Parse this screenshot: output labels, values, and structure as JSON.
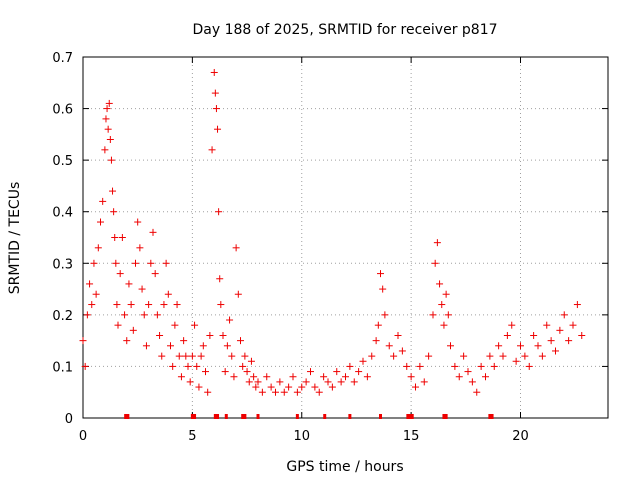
{
  "chart_data": {
    "type": "scatter",
    "title": "Day 188 of 2025, SRMTID for receiver p817",
    "xlabel": "GPS time / hours",
    "ylabel": "SRMTID / TECUs",
    "xlim": [
      0,
      24
    ],
    "ylim": [
      0,
      0.7
    ],
    "xticks": [
      0,
      5,
      10,
      15,
      20
    ],
    "yticks": [
      0,
      0.1,
      0.2,
      0.3,
      0.4,
      0.5,
      0.6,
      0.7
    ],
    "xtick_labels": [
      "0",
      "5",
      "10",
      "15",
      "20"
    ],
    "ytick_labels": [
      "0",
      "0.1",
      "0.2",
      "0.3",
      "0.4",
      "0.5",
      "0.6",
      "0.7"
    ],
    "grid": true,
    "marker": "plus",
    "color": "#ee0000",
    "series": [
      {
        "name": "SRMTID",
        "x": [
          0.0,
          0.1,
          0.2,
          0.3,
          0.4,
          0.5,
          0.6,
          0.7,
          0.8,
          0.9,
          1.0,
          1.05,
          1.1,
          1.15,
          1.2,
          1.25,
          1.3,
          1.35,
          1.4,
          1.45,
          1.5,
          1.55,
          1.6,
          1.7,
          1.8,
          1.9,
          2.0,
          2.1,
          2.2,
          2.3,
          2.4,
          2.5,
          2.6,
          2.7,
          2.8,
          2.9,
          3.0,
          3.1,
          3.2,
          3.3,
          3.4,
          3.5,
          3.6,
          3.7,
          3.8,
          3.9,
          4.0,
          4.1,
          4.2,
          4.3,
          4.4,
          4.5,
          4.6,
          4.7,
          4.8,
          4.9,
          5.0,
          5.1,
          5.2,
          5.3,
          5.4,
          5.5,
          5.6,
          5.7,
          5.8,
          5.9,
          6.0,
          6.05,
          6.1,
          6.15,
          6.2,
          6.25,
          6.3,
          6.4,
          6.5,
          6.6,
          6.7,
          6.8,
          6.9,
          7.0,
          7.1,
          7.2,
          7.3,
          7.4,
          7.5,
          7.6,
          7.7,
          7.8,
          7.9,
          8.0,
          8.2,
          8.4,
          8.6,
          8.8,
          9.0,
          9.2,
          9.4,
          9.6,
          9.8,
          10.0,
          10.2,
          10.4,
          10.6,
          10.8,
          11.0,
          11.2,
          11.4,
          11.6,
          11.8,
          12.0,
          12.2,
          12.4,
          12.6,
          12.8,
          13.0,
          13.2,
          13.4,
          13.5,
          13.6,
          13.7,
          13.8,
          14.0,
          14.2,
          14.4,
          14.6,
          14.8,
          15.0,
          15.2,
          15.4,
          15.6,
          15.8,
          16.0,
          16.1,
          16.2,
          16.3,
          16.4,
          16.5,
          16.6,
          16.7,
          16.8,
          17.0,
          17.2,
          17.4,
          17.6,
          17.8,
          18.0,
          18.2,
          18.4,
          18.6,
          18.8,
          19.0,
          19.2,
          19.4,
          19.6,
          19.8,
          20.0,
          20.2,
          20.4,
          20.6,
          20.8,
          21.0,
          21.2,
          21.4,
          21.6,
          21.8,
          22.0,
          22.2,
          22.4,
          22.6,
          22.8
        ],
        "y": [
          0.15,
          0.1,
          0.2,
          0.26,
          0.22,
          0.3,
          0.24,
          0.33,
          0.38,
          0.42,
          0.52,
          0.58,
          0.6,
          0.56,
          0.61,
          0.54,
          0.5,
          0.44,
          0.4,
          0.35,
          0.3,
          0.22,
          0.18,
          0.28,
          0.35,
          0.2,
          0.15,
          0.26,
          0.22,
          0.17,
          0.3,
          0.38,
          0.33,
          0.25,
          0.2,
          0.14,
          0.22,
          0.3,
          0.36,
          0.28,
          0.2,
          0.16,
          0.12,
          0.22,
          0.3,
          0.24,
          0.14,
          0.1,
          0.18,
          0.22,
          0.12,
          0.08,
          0.15,
          0.12,
          0.1,
          0.07,
          0.12,
          0.18,
          0.1,
          0.06,
          0.12,
          0.14,
          0.09,
          0.05,
          0.16,
          0.52,
          0.67,
          0.63,
          0.6,
          0.56,
          0.4,
          0.27,
          0.22,
          0.16,
          0.09,
          0.14,
          0.19,
          0.12,
          0.08,
          0.33,
          0.24,
          0.15,
          0.1,
          0.12,
          0.09,
          0.07,
          0.11,
          0.08,
          0.06,
          0.07,
          0.05,
          0.08,
          0.06,
          0.05,
          0.07,
          0.05,
          0.06,
          0.08,
          0.05,
          0.06,
          0.07,
          0.09,
          0.06,
          0.05,
          0.08,
          0.07,
          0.06,
          0.09,
          0.07,
          0.08,
          0.1,
          0.07,
          0.09,
          0.11,
          0.08,
          0.12,
          0.15,
          0.18,
          0.28,
          0.25,
          0.2,
          0.14,
          0.12,
          0.16,
          0.13,
          0.1,
          0.08,
          0.06,
          0.1,
          0.07,
          0.12,
          0.2,
          0.3,
          0.34,
          0.26,
          0.22,
          0.18,
          0.24,
          0.2,
          0.14,
          0.1,
          0.08,
          0.12,
          0.09,
          0.07,
          0.05,
          0.1,
          0.08,
          0.12,
          0.1,
          0.14,
          0.12,
          0.16,
          0.18,
          0.11,
          0.14,
          0.12,
          0.1,
          0.16,
          0.14,
          0.12,
          0.18,
          0.15,
          0.13,
          0.17,
          0.2,
          0.15,
          0.18,
          0.22,
          0.16
        ]
      }
    ],
    "rug_x": [
      1.95,
      2.05,
      5.0,
      5.1,
      6.05,
      6.15,
      6.55,
      7.3,
      7.4,
      8.0,
      9.8,
      11.05,
      12.2,
      13.6,
      14.85,
      14.95,
      15.0,
      15.05,
      16.5,
      16.6,
      18.6,
      18.7
    ]
  }
}
